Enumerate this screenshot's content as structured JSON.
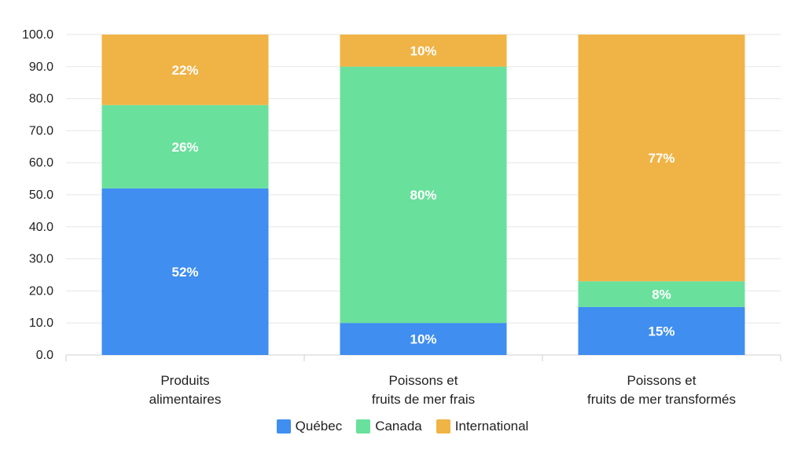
{
  "chart_data": {
    "type": "bar",
    "stacked": true,
    "categories": [
      [
        "Produits",
        "alimentaires"
      ],
      [
        "Poissons et",
        "fruits de mer frais"
      ],
      [
        "Poissons et",
        "fruits de mer transformés"
      ]
    ],
    "series": [
      {
        "name": "Québec",
        "color": "#3f8ef0",
        "values": [
          52,
          10,
          15
        ],
        "labels": [
          "52%",
          "10%",
          "15%"
        ]
      },
      {
        "name": "Canada",
        "color": "#69e09c",
        "values": [
          26,
          80,
          8
        ],
        "labels": [
          "26%",
          "80%",
          "8%"
        ]
      },
      {
        "name": "International",
        "color": "#f0b346",
        "values": [
          22,
          10,
          77
        ],
        "labels": [
          "22%",
          "10%",
          "77%"
        ]
      }
    ],
    "ylim": [
      0,
      100
    ],
    "yticks": [
      "0.0",
      "10.0",
      "20.0",
      "30.0",
      "40.0",
      "50.0",
      "60.0",
      "70.0",
      "80.0",
      "90.0",
      "100.0"
    ],
    "grid": true,
    "legend_position": "bottom"
  }
}
